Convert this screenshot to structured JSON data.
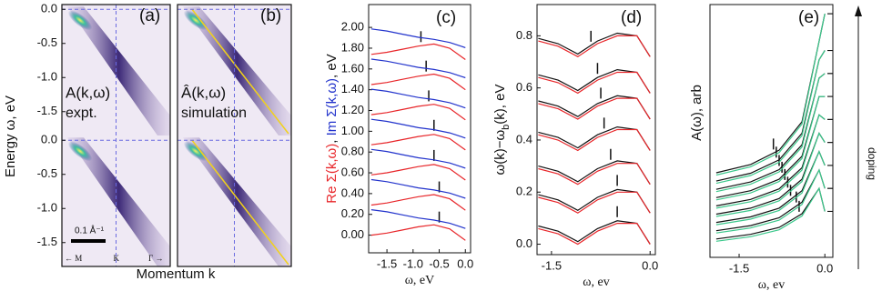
{
  "chart_data": [
    {
      "type": "image",
      "panel": "(a)",
      "label": "A(k,ω)",
      "sublabel": "expt.",
      "ylabel": "Energy ω, eV",
      "xlabel": "Momentum k",
      "ylim": [
        0.07,
        -1.85
      ],
      "yticks": [
        {
          "value": 0,
          "label": "0.0"
        },
        -0.5,
        {
          "value": -1,
          "label": "-1.0"
        },
        -1.5
      ],
      "scale_bar": "0.1 Å⁻¹",
      "k_labels": [
        "← M",
        "K",
        "Γ →"
      ]
    },
    {
      "type": "image",
      "panel": "(b)",
      "label": "Â(k,ω)",
      "sublabel": "simulation",
      "fit_line_color": "#f2d21a"
    },
    {
      "type": "line",
      "panel": "(c)",
      "ylabel": [
        {
          "text": "Re Σ(k,ω)",
          "color": "#e8262a"
        },
        {
          "text": ", ",
          "color": "#111111"
        },
        {
          "text": "Im Σ(k,ω)",
          "color": "#2233cc"
        },
        {
          "text": ", eV",
          "color": "#111111"
        }
      ],
      "xlabel": "ω, eV",
      "x": [
        -1.8,
        -1.5,
        -1.2,
        -0.9,
        -0.6,
        -0.3,
        0.0
      ],
      "xlim": [
        -1.85,
        0.1
      ],
      "xticks": [
        -1.5,
        {
          "value": -1,
          "label": "-1.0"
        },
        -0.5,
        {
          "value": 0,
          "label": "0.0"
        }
      ],
      "ylim": [
        -0.17,
        2.22
      ],
      "yticks": [
        {
          "value": 0,
          "label": "0.00"
        },
        {
          "value": 0.2,
          "label": "0.20"
        },
        {
          "value": 0.4,
          "label": "0.40"
        },
        {
          "value": 0.6,
          "label": "0.60"
        },
        {
          "value": 0.8,
          "label": "0.80"
        },
        {
          "value": 1,
          "label": "1.00"
        },
        {
          "value": 1.2,
          "label": "1.20"
        },
        {
          "value": 1.4,
          "label": "1.40"
        },
        {
          "value": 1.6,
          "label": "1.60"
        },
        {
          "value": 1.8,
          "label": "1.80"
        },
        {
          "value": 2,
          "label": "2.00"
        }
      ],
      "series": [
        {
          "color": "#e8262a",
          "values": [
            0.0,
            0.02,
            0.05,
            0.08,
            0.1,
            0.06,
            -0.05
          ],
          "kink": -0.5
        },
        {
          "color": "#2233cc",
          "values": [
            0.245,
            0.225,
            0.195,
            0.165,
            0.145,
            0.115,
            0.065
          ]
        },
        {
          "color": "#e8262a",
          "values": [
            0.29,
            0.31,
            0.34,
            0.37,
            0.39,
            0.35,
            0.24
          ],
          "kink": -0.5
        },
        {
          "color": "#2233cc",
          "values": [
            0.535,
            0.515,
            0.485,
            0.455,
            0.435,
            0.405,
            0.355
          ]
        },
        {
          "color": "#e8262a",
          "values": [
            0.58,
            0.6,
            0.63,
            0.66,
            0.68,
            0.64,
            0.53
          ],
          "kink": -0.6
        },
        {
          "color": "#2233cc",
          "values": [
            0.825,
            0.805,
            0.775,
            0.745,
            0.725,
            0.695,
            0.645
          ]
        },
        {
          "color": "#e8262a",
          "values": [
            0.87,
            0.89,
            0.92,
            0.95,
            0.97,
            0.93,
            0.82
          ],
          "kink": -0.6
        },
        {
          "color": "#2233cc",
          "values": [
            1.115,
            1.095,
            1.065,
            1.035,
            1.015,
            0.985,
            0.935
          ]
        },
        {
          "color": "#e8262a",
          "values": [
            1.16,
            1.18,
            1.21,
            1.24,
            1.26,
            1.22,
            1.11
          ],
          "kink": -0.7
        },
        {
          "color": "#2233cc",
          "values": [
            1.405,
            1.385,
            1.355,
            1.325,
            1.305,
            1.275,
            1.225
          ]
        },
        {
          "color": "#e8262a",
          "values": [
            1.45,
            1.47,
            1.5,
            1.53,
            1.55,
            1.51,
            1.4
          ],
          "kink": -0.75
        },
        {
          "color": "#2233cc",
          "values": [
            1.695,
            1.675,
            1.645,
            1.615,
            1.595,
            1.565,
            1.515
          ]
        },
        {
          "color": "#e8262a",
          "values": [
            1.74,
            1.76,
            1.79,
            1.82,
            1.84,
            1.8,
            1.69
          ],
          "kink": -0.85
        },
        {
          "color": "#2233cc",
          "values": [
            1.985,
            1.965,
            1.935,
            1.905,
            1.885,
            1.855,
            1.805
          ]
        }
      ]
    },
    {
      "type": "line",
      "panel": "(d)",
      "ylabel": [
        {
          "text": "ω(k)−ω"
        },
        {
          "text": "b",
          "sub": true
        },
        {
          "text": "(k), eV"
        }
      ],
      "xlabel": "ω, ev",
      "x": [
        -1.7,
        -1.4,
        -1.1,
        -0.8,
        -0.5,
        -0.2,
        0.0
      ],
      "xlim": [
        -1.72,
        0.08
      ],
      "xticks": [
        -1.5,
        {
          "value": 0,
          "label": "0.0"
        }
      ],
      "ylim": [
        -0.04,
        0.92
      ],
      "yticks": [
        {
          "value": 0,
          "label": "0.0"
        },
        0.2,
        0.4,
        0.6,
        0.8
      ],
      "series": [
        {
          "color": "#111111",
          "values": [
            0.07,
            0.05,
            0.01,
            0.06,
            0.09,
            0.08,
            0.0
          ],
          "kink": -0.5
        },
        {
          "color": "#e8262a",
          "values": [
            0.06,
            0.04,
            0.0,
            0.05,
            0.08,
            0.08,
            0.0
          ]
        },
        {
          "color": "#111111",
          "values": [
            0.19,
            0.17,
            0.13,
            0.18,
            0.21,
            0.2,
            0.12
          ],
          "kink": -0.5
        },
        {
          "color": "#e8262a",
          "values": [
            0.18,
            0.16,
            0.12,
            0.17,
            0.2,
            0.2,
            0.12
          ]
        },
        {
          "color": "#111111",
          "values": [
            0.3,
            0.28,
            0.24,
            0.29,
            0.32,
            0.31,
            0.23
          ],
          "kink": -0.6
        },
        {
          "color": "#e8262a",
          "values": [
            0.29,
            0.27,
            0.23,
            0.28,
            0.31,
            0.31,
            0.23
          ]
        },
        {
          "color": "#111111",
          "values": [
            0.43,
            0.41,
            0.37,
            0.42,
            0.45,
            0.44,
            0.36
          ],
          "kink": -0.7
        },
        {
          "color": "#e8262a",
          "values": [
            0.42,
            0.4,
            0.36,
            0.41,
            0.44,
            0.44,
            0.36
          ]
        },
        {
          "color": "#111111",
          "values": [
            0.55,
            0.53,
            0.49,
            0.54,
            0.57,
            0.56,
            0.48
          ],
          "kink": -0.75
        },
        {
          "color": "#e8262a",
          "values": [
            0.54,
            0.52,
            0.48,
            0.53,
            0.56,
            0.56,
            0.48
          ]
        },
        {
          "color": "#111111",
          "values": [
            0.65,
            0.63,
            0.59,
            0.64,
            0.67,
            0.66,
            0.58
          ],
          "kink": -0.8
        },
        {
          "color": "#e8262a",
          "values": [
            0.64,
            0.62,
            0.58,
            0.63,
            0.66,
            0.66,
            0.58
          ]
        },
        {
          "color": "#111111",
          "values": [
            0.79,
            0.77,
            0.73,
            0.78,
            0.81,
            0.8,
            0.72
          ],
          "kink": -0.9
        },
        {
          "color": "#e8262a",
          "values": [
            0.78,
            0.76,
            0.72,
            0.77,
            0.8,
            0.8,
            0.72
          ]
        }
      ]
    },
    {
      "type": "line",
      "panel": "(e)",
      "ylabel": "A(ω), arb",
      "xlabel": "ω, ev",
      "x": [
        -1.9,
        -1.3,
        -0.8,
        -0.4,
        -0.1,
        0.0
      ],
      "xlim": [
        -2.01,
        0.14
      ],
      "xticks": [
        -1.5,
        {
          "value": 0,
          "label": "0.0"
        }
      ],
      "ylim": [
        0,
        11
      ],
      "end_ticks": true,
      "arrow_label": "doping",
      "series": [
        {
          "color": "#111111",
          "values": [
            0.8,
            1.0,
            1.3,
            1.9,
            3.0,
            2.0
          ],
          "kink": -0.45
        },
        {
          "color": "#3cc88c",
          "values": [
            0.7,
            0.9,
            1.2,
            1.8,
            3.0,
            2.0
          ]
        },
        {
          "color": "#111111",
          "values": [
            1.16,
            1.38,
            1.72,
            2.4,
            3.8,
            3.0
          ],
          "kink": -0.5
        },
        {
          "color": "#3cc88c",
          "values": [
            1.06,
            1.28,
            1.62,
            2.3,
            3.8,
            3.0
          ]
        },
        {
          "color": "#111111",
          "values": [
            1.52,
            1.76,
            2.14,
            2.9,
            4.6,
            4.0
          ],
          "kink": -0.6
        },
        {
          "color": "#3cc88c",
          "values": [
            1.42,
            1.66,
            2.04,
            2.8,
            4.6,
            4.0
          ]
        },
        {
          "color": "#111111",
          "values": [
            1.88,
            2.14,
            2.56,
            3.4,
            5.4,
            5.0
          ],
          "kink": -0.65
        },
        {
          "color": "#3cc88c",
          "values": [
            1.78,
            2.04,
            2.46,
            3.3,
            5.4,
            5.0
          ]
        },
        {
          "color": "#111111",
          "values": [
            2.24,
            2.52,
            2.98,
            3.9,
            6.2,
            6.0
          ],
          "kink": -0.7
        },
        {
          "color": "#3cc88c",
          "values": [
            2.14,
            2.42,
            2.88,
            3.8,
            6.2,
            6.0
          ]
        },
        {
          "color": "#111111",
          "values": [
            2.6,
            2.9,
            3.4,
            4.4,
            7.0,
            7.0
          ],
          "kink": -0.75
        },
        {
          "color": "#3cc88c",
          "values": [
            2.5,
            2.8,
            3.3,
            4.3,
            7.0,
            7.0
          ]
        },
        {
          "color": "#111111",
          "values": [
            2.96,
            3.28,
            3.82,
            4.9,
            7.8,
            8.0
          ],
          "kink": -0.8
        },
        {
          "color": "#3cc88c",
          "values": [
            2.86,
            3.18,
            3.72,
            4.8,
            7.8,
            8.0
          ]
        },
        {
          "color": "#111111",
          "values": [
            3.32,
            3.66,
            4.24,
            5.4,
            8.6,
            9.0
          ],
          "kink": -0.85
        },
        {
          "color": "#3cc88c",
          "values": [
            3.22,
            3.56,
            4.14,
            5.3,
            8.6,
            9.0
          ]
        },
        {
          "color": "#111111",
          "values": [
            3.68,
            4.04,
            4.66,
            5.9,
            9.4,
            10.6
          ],
          "kink": -0.9
        },
        {
          "color": "#3cc88c",
          "values": [
            3.58,
            3.94,
            4.56,
            5.8,
            9.4,
            10.6
          ]
        }
      ]
    }
  ]
}
